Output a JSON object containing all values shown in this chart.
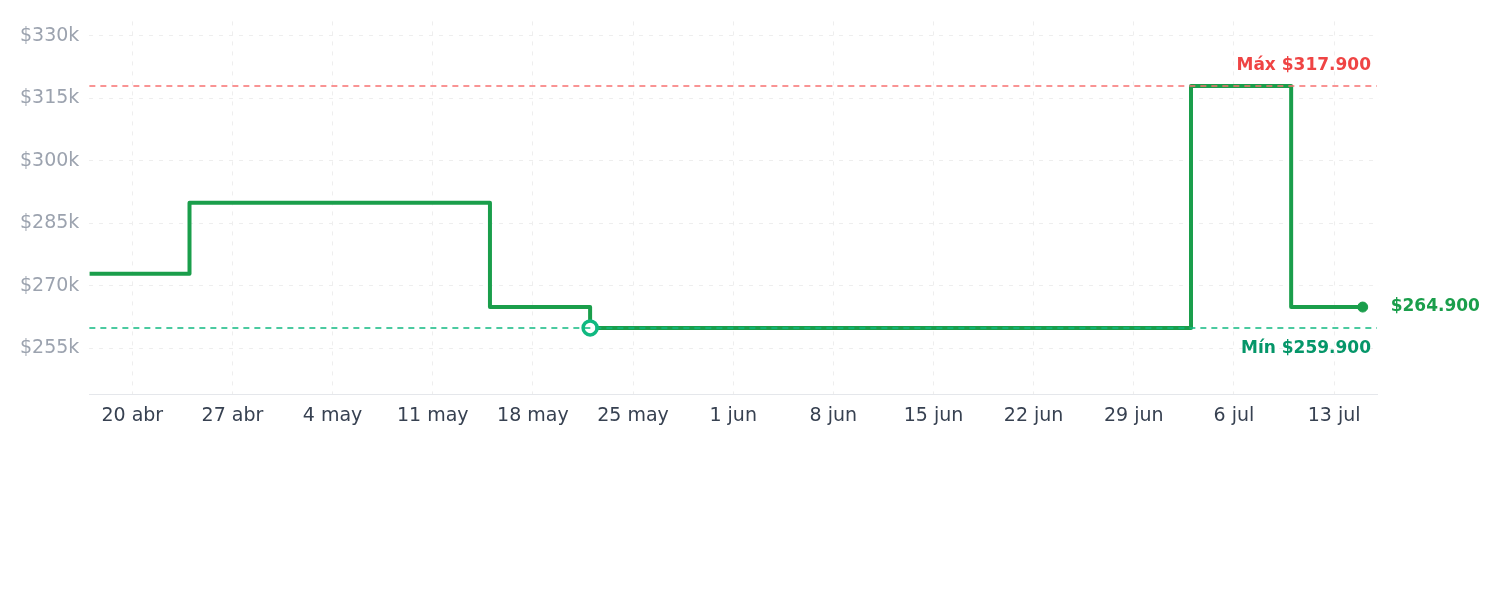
{
  "chart_data": {
    "type": "step",
    "series": [
      {
        "color": "#1a9e4b",
        "x": [
          "--04-17",
          "--04-24",
          "--05-15",
          "--05-22",
          "--07-03",
          "--07-10",
          "--07-15"
        ],
        "values": [
          272.9,
          289.9,
          264.9,
          259.9,
          317.9,
          264.9,
          264.9
        ]
      }
    ],
    "xlim": [
      "--04-17",
      "--07-16"
    ],
    "xticks": [
      {
        "value": "--04-20",
        "label": "20 abr"
      },
      {
        "value": "--04-27",
        "label": "27 abr"
      },
      {
        "value": "--05-04",
        "label": "4 may"
      },
      {
        "value": "--05-11",
        "label": "11 may"
      },
      {
        "value": "--05-18",
        "label": "18 may"
      },
      {
        "value": "--05-25",
        "label": "25 may"
      },
      {
        "value": "--06-01",
        "label": "1 jun"
      },
      {
        "value": "--06-08",
        "label": "8 jun"
      },
      {
        "value": "--06-15",
        "label": "15 jun"
      },
      {
        "value": "--06-22",
        "label": "22 jun"
      },
      {
        "value": "--06-29",
        "label": "29 jun"
      },
      {
        "value": "--07-06",
        "label": "6 jul"
      },
      {
        "value": "--07-13",
        "label": "13 jul"
      }
    ],
    "ylim": [
      244,
      333.4
    ],
    "yticks": [
      {
        "value": 255,
        "label": "$255k"
      },
      {
        "value": 270,
        "label": "$270k"
      },
      {
        "value": 285,
        "label": "$285k"
      },
      {
        "value": 300,
        "label": "$300k"
      },
      {
        "value": 315,
        "label": "$315k"
      },
      {
        "value": 330,
        "label": "$330k"
      }
    ],
    "ref_lines": [
      {
        "axis": "y",
        "value": 317.9,
        "label": "Máx $317.900",
        "color": "#f87171",
        "line_style": "dashed"
      },
      {
        "axis": "y",
        "value": 259.9,
        "label": "Mín $259.900",
        "color": "#10b981",
        "line_style": "dashed"
      }
    ],
    "annotations": [
      {
        "text": "$264.900",
        "x": "--07-15",
        "y": 264.9
      }
    ],
    "grid": true,
    "legend": false,
    "line_style": "solid"
  }
}
